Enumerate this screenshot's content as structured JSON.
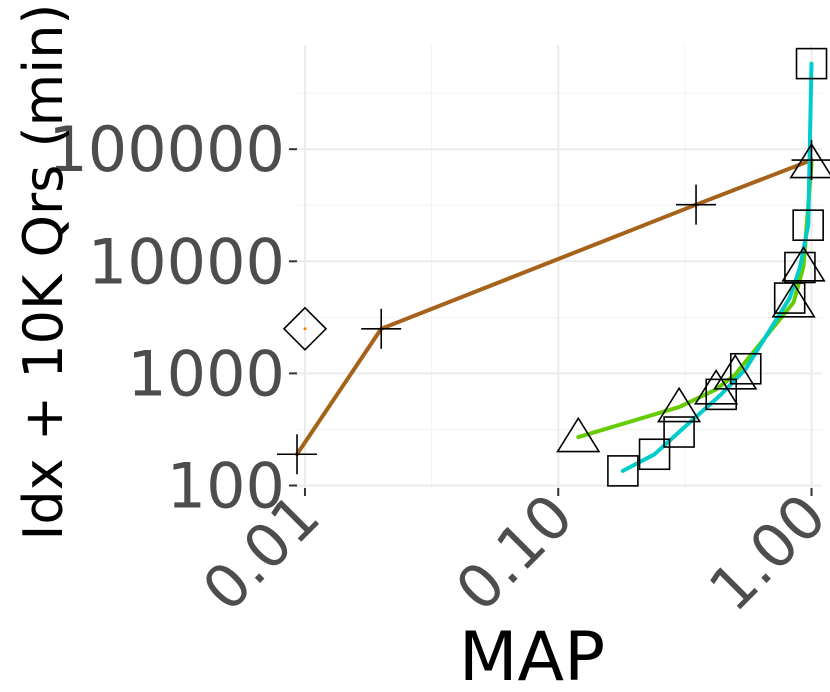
{
  "chart_data": {
    "type": "line",
    "title": "",
    "xlabel": "MAP",
    "ylabel": "Idx + 10K Qrs (min)",
    "x_scale": "log10",
    "y_scale": "log10",
    "xlim": [
      0.0093,
      1.1
    ],
    "ylim": [
      95,
      850000
    ],
    "grid": true,
    "x_ticks": [
      {
        "value": 0.01,
        "label": "0.01"
      },
      {
        "value": 0.1,
        "label": "0.10"
      },
      {
        "value": 1.0,
        "label": "1.00"
      }
    ],
    "y_ticks": [
      {
        "value": 100,
        "label": "100"
      },
      {
        "value": 1000,
        "label": "1000"
      },
      {
        "value": 10000,
        "label": "10000"
      },
      {
        "value": 100000,
        "label": "100000"
      }
    ],
    "series": [
      {
        "color": "#a6611a",
        "marker": "plus",
        "x": [
          0.0093,
          0.02,
          0.35,
          1.0
        ],
        "y": [
          190,
          2500,
          32000,
          80000
        ]
      },
      {
        "color": "#66cc00",
        "marker": "triangle",
        "x": [
          0.12,
          0.3,
          0.42,
          0.5,
          0.85,
          0.93,
          1.0
        ],
        "y": [
          270,
          500,
          720,
          980,
          4300,
          9000,
          75000
        ]
      },
      {
        "color": "#00cccc",
        "marker": "square",
        "x": [
          0.18,
          0.24,
          0.3,
          0.44,
          0.55,
          0.82,
          0.9,
          0.97,
          1.0
        ],
        "y": [
          135,
          190,
          300,
          650,
          1100,
          4700,
          8800,
          21000,
          580000
        ]
      },
      {
        "color": "#ff7f00",
        "marker": "diamond",
        "x": [
          0.01
        ],
        "y": [
          2500
        ]
      }
    ]
  }
}
